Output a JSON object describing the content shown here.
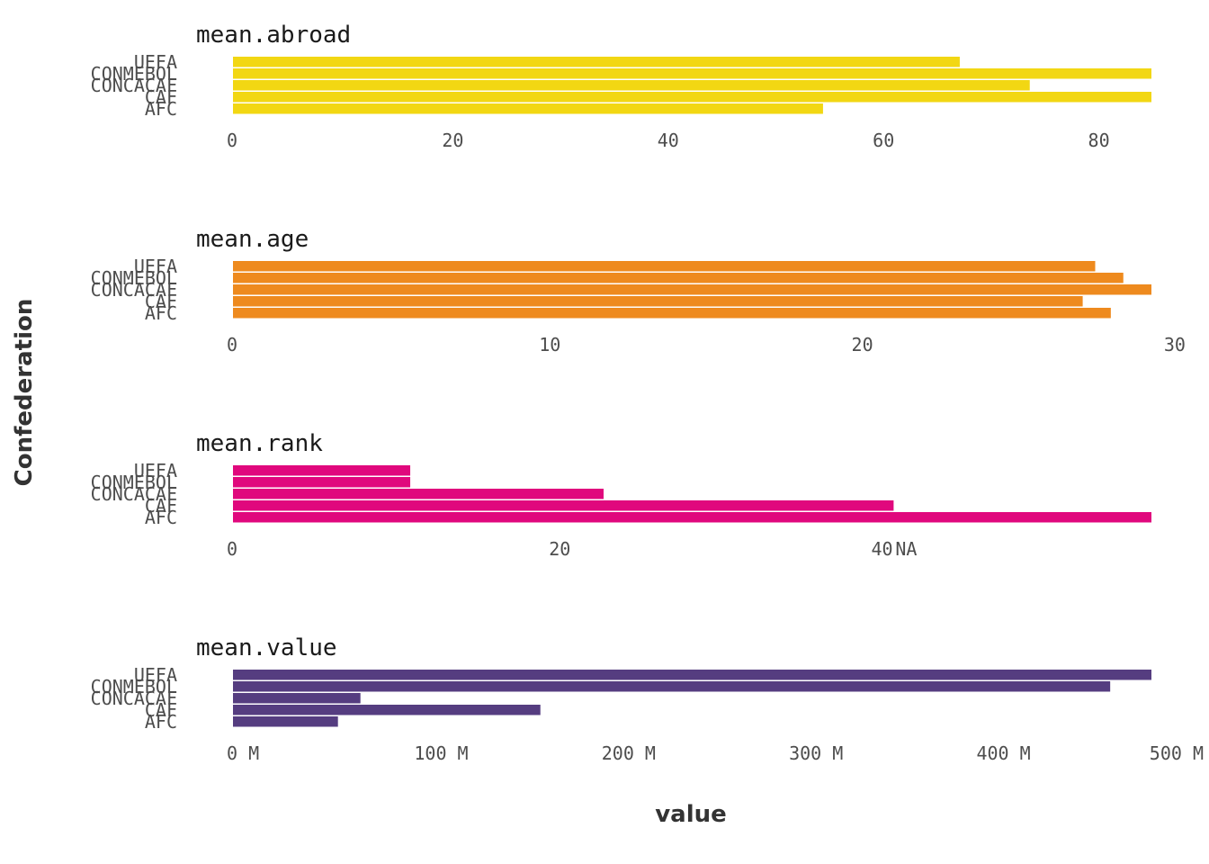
{
  "chart_data": {
    "type": "bar",
    "orientation": "horizontal",
    "xlabel": "value",
    "ylabel": "Confederation",
    "categories": [
      "UEFA",
      "CONMEBOL",
      "CONCACAF",
      "CAF",
      "AFC"
    ],
    "panels": [
      {
        "title": "mean.abroad",
        "color": "#f2d713",
        "values": [
          67.5,
          85.3,
          74.0,
          85.3,
          54.8
        ],
        "xlim": [
          0,
          85.3
        ],
        "ticks": [
          0,
          20,
          40,
          60,
          80
        ],
        "tick_labels": [
          "0",
          "20",
          "40",
          "60",
          "80"
        ]
      },
      {
        "title": "mean.age",
        "color": "#ee8a1e",
        "values": [
          27.6,
          28.5,
          29.4,
          27.2,
          28.1
        ],
        "xlim": [
          0,
          29.4
        ],
        "ticks": [
          0,
          10,
          20,
          30
        ],
        "tick_labels": [
          "0",
          "10",
          "20",
          "30"
        ]
      },
      {
        "title": "mean.rank",
        "color": "#e0087d",
        "values": [
          11.0,
          11.0,
          23.0,
          41.0,
          57.0
        ],
        "xlim": [
          0,
          57.0
        ],
        "ticks": [
          0,
          20,
          40,
          41.5
        ],
        "tick_labels": [
          "0",
          "20",
          "40",
          "NA"
        ]
      },
      {
        "title": "mean.value",
        "color": "#553d80",
        "values": [
          490,
          468,
          68,
          164,
          56
        ],
        "xlim": [
          0,
          490
        ],
        "ticks": [
          0,
          100,
          200,
          300,
          400,
          500
        ],
        "tick_labels": [
          "0 M",
          "100 M",
          "200 M",
          "300 M",
          "400 M",
          "500 M"
        ]
      }
    ]
  }
}
